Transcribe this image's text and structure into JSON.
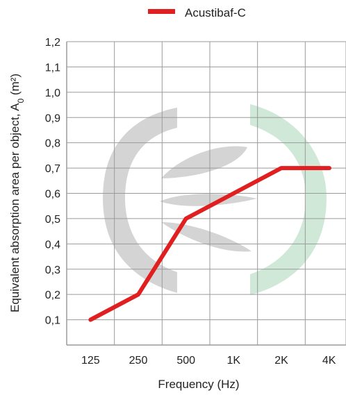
{
  "chart_data": {
    "type": "line",
    "title": "",
    "xlabel": "Frequency (Hz)",
    "ylabel": "Equivalent absorption area per object, A",
    "ylabel_subscript": "0",
    "ylabel_unit": " (m²)",
    "categories": [
      "125",
      "250",
      "500",
      "1K",
      "2K",
      "4K"
    ],
    "yticks": [
      "0,1",
      "0,2",
      "0,3",
      "0,4",
      "0,5",
      "0,6",
      "0,7",
      "0,8",
      "0,9",
      "1,0",
      "1,1",
      "1,2"
    ],
    "ylim": [
      0,
      1.2
    ],
    "grid": true,
    "legend_position": "top",
    "series": [
      {
        "name": "Acustibaf-C",
        "color": "#e02020",
        "values": [
          0.1,
          0.2,
          0.5,
          0.6,
          0.7,
          0.7
        ]
      }
    ],
    "watermark": {
      "colors": {
        "gray": "#d4d4d4",
        "green": "#cfe8d7"
      }
    }
  }
}
